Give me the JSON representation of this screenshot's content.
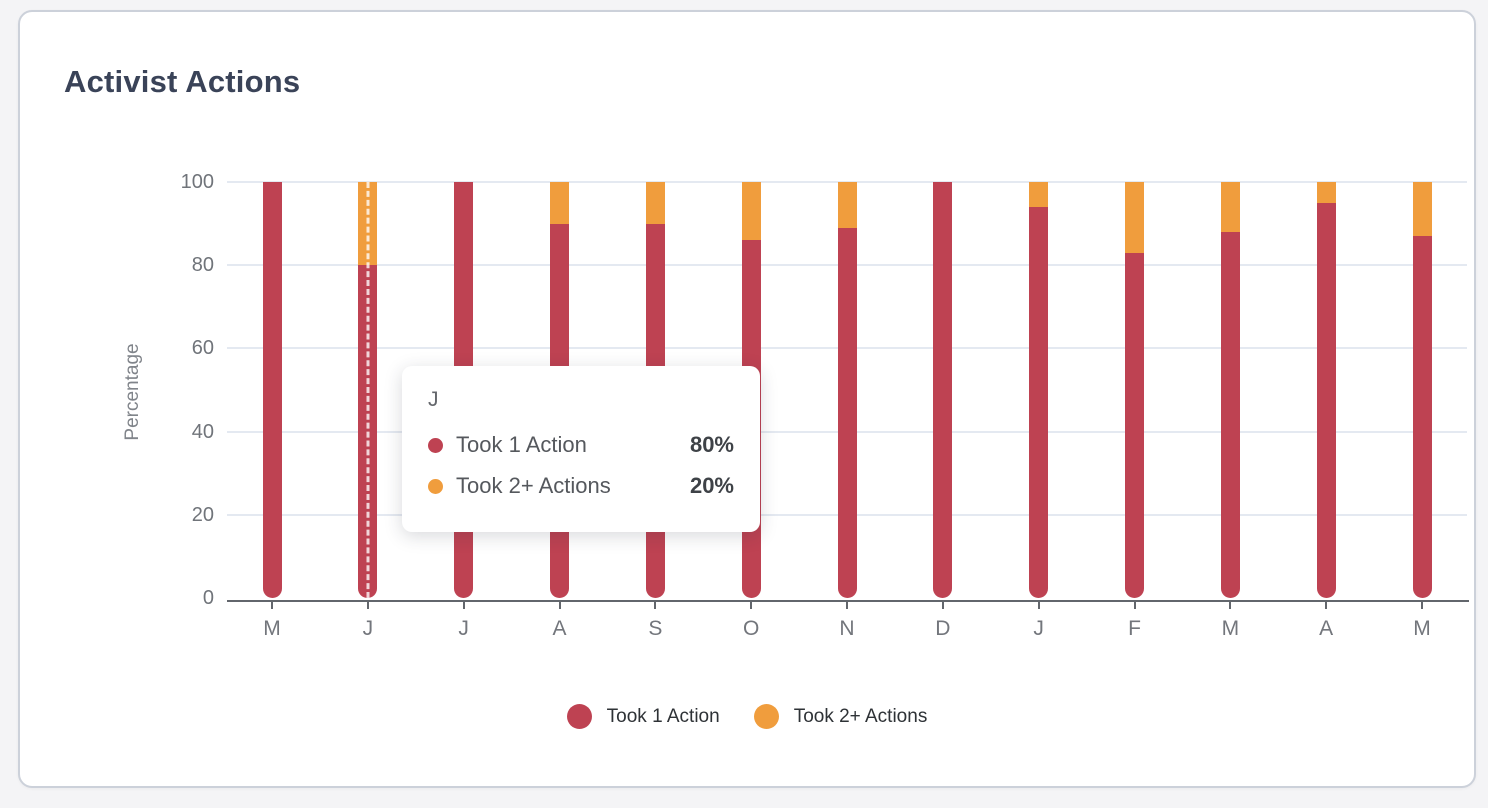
{
  "page": {
    "background": "#f4f4f6"
  },
  "card": {
    "title": "Activist Actions",
    "title_color": "#3a4358"
  },
  "chart_data": {
    "type": "bar",
    "stacked": true,
    "title": "Activist Actions",
    "xlabel": "",
    "ylabel": "Percentage",
    "categories": [
      "M",
      "J",
      "J",
      "A",
      "S",
      "O",
      "N",
      "D",
      "J",
      "F",
      "M",
      "A",
      "M"
    ],
    "series": [
      {
        "name": "Took 1 Action",
        "color": "#be4252",
        "values": [
          100,
          80,
          100,
          90,
          90,
          86,
          89,
          100,
          94,
          83,
          88,
          95,
          87
        ]
      },
      {
        "name": "Took 2+ Actions",
        "color": "#f09d3d",
        "values": [
          0,
          20,
          0,
          10,
          10,
          14,
          11,
          0,
          6,
          17,
          12,
          5,
          13
        ]
      }
    ],
    "yticks": [
      0,
      20,
      40,
      60,
      80,
      100
    ],
    "ylim": [
      0,
      100
    ],
    "grid": true,
    "legend_position": "bottom",
    "hovered_index": 1
  },
  "tooltip": {
    "title": "J",
    "rows": [
      {
        "label": "Took 1 Action",
        "value": "80%",
        "color": "#be4252"
      },
      {
        "label": "Took 2+ Actions",
        "value": "20%",
        "color": "#f09d3d"
      }
    ]
  },
  "legend": {
    "items": [
      {
        "label": "Took 1 Action",
        "color": "#be4252"
      },
      {
        "label": "Took 2+ Actions",
        "color": "#f09d3d"
      }
    ]
  },
  "colors": {
    "gridline": "#e4e9f1",
    "axis": "#62666c",
    "tick_text": "#73767c"
  }
}
